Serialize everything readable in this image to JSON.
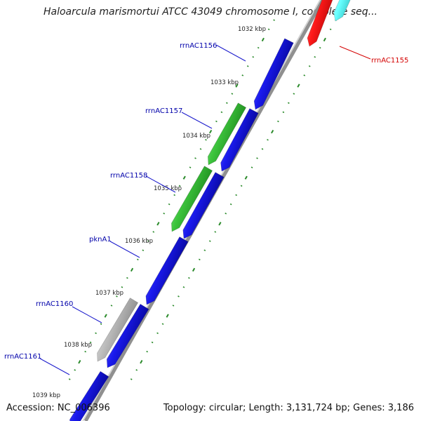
{
  "title": "Haloarcula marismortui ATCC 43049 chromosome I, complete seq...",
  "footer": {
    "accession": "Accession: NC_006396",
    "topology": "Topology: circular; Length: 3,131,724 bp; Genes: 3,186"
  },
  "kbp_labels": [
    "1032 kbp",
    "1033 kbp",
    "1034 kbp",
    "1035 kbp",
    "1036 kbp",
    "1037 kbp",
    "1038 kbp",
    "1039 kbp"
  ],
  "gene_labels": [
    {
      "name": "rrnAC1155",
      "color": "#d40000"
    },
    {
      "name": "rrnAC1156",
      "color": "#0000aa"
    },
    {
      "name": "rrnAC1157",
      "color": "#0000aa"
    },
    {
      "name": "rrnAC1158",
      "color": "#0000aa"
    },
    {
      "name": "pknA1",
      "color": "#0000aa"
    },
    {
      "name": "rrnAC1160",
      "color": "#0000aa"
    },
    {
      "name": "rrnAC1161",
      "color": "#0000aa"
    }
  ],
  "colors": {
    "blue_gene": "#1a1aee",
    "green_gene": "#3cc43c",
    "gray_gene": "#b8b8b8",
    "red_gene": "#ff1a1a",
    "cyan_gene": "#66ffff",
    "backbone": "#909090",
    "tick": "#2a8a2a"
  }
}
